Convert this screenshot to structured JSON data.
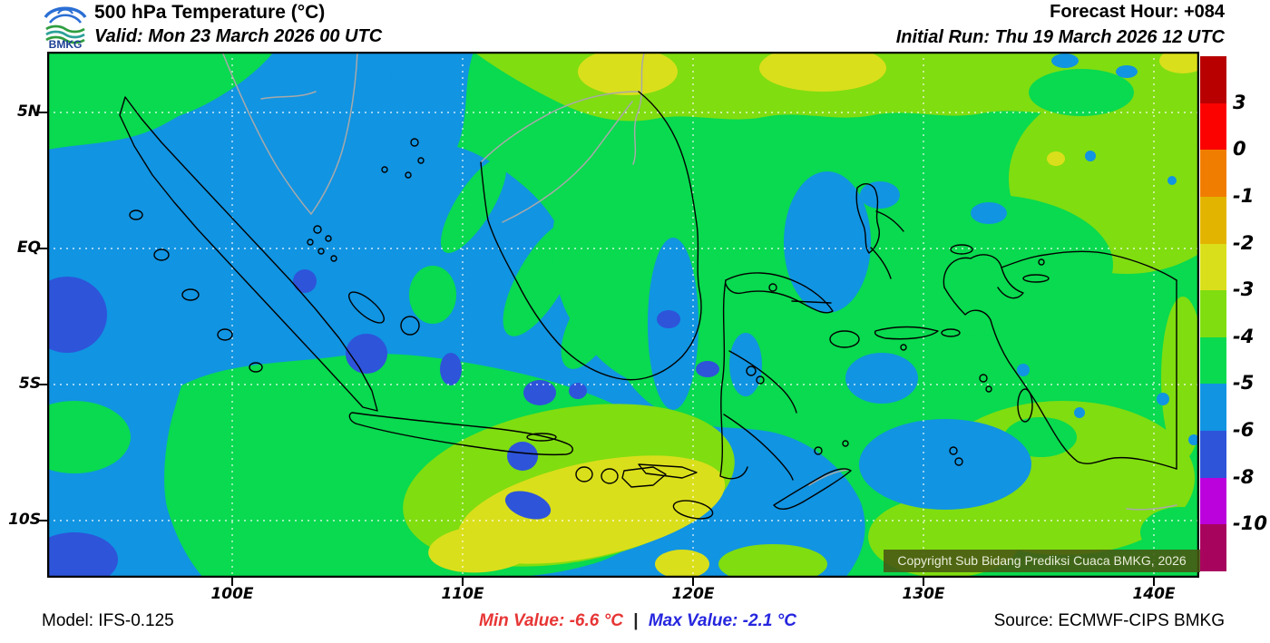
{
  "header": {
    "logo_text": "BMKG",
    "title": "500 hPa Temperature (°C)",
    "valid": "Valid: Mon 23 March 2026 00 UTC",
    "forecast_hour": "Forecast Hour: +084",
    "initial_run": "Initial Run: Thu 19 March 2026 12 UTC"
  },
  "map": {
    "lat_ticks": [
      "5N",
      "EQ",
      "5S",
      "10S"
    ],
    "lon_ticks": [
      "100E",
      "110E",
      "120E",
      "130E",
      "140E"
    ],
    "copyright": "Copyright Sub Bidang Prediksi Cuaca BMKG, 2026",
    "palette": {
      "green": "#09da4f",
      "light_green": "#80dd10",
      "yellow": "#dadf1b",
      "blue": "#1194e2",
      "dark_blue": "#2e54da"
    }
  },
  "colorbar": {
    "labels": [
      "3",
      "0",
      "-1",
      "-2",
      "-3",
      "-4",
      "-5",
      "-6",
      "-8",
      "-10"
    ],
    "colors": [
      "#b80000",
      "#fb0200",
      "#f17d00",
      "#e2b400",
      "#dadf1b",
      "#80dd10",
      "#09da4f",
      "#1194e2",
      "#2e54da",
      "#bb02dd",
      "#a7045e"
    ]
  },
  "footer": {
    "model": "Model: IFS-0.125",
    "min_value": "Min Value: -6.6 °C",
    "separator": "|",
    "max_value": "Max Value: -2.1 °C",
    "source": "Source: ECMWF-CIPS BMKG"
  }
}
